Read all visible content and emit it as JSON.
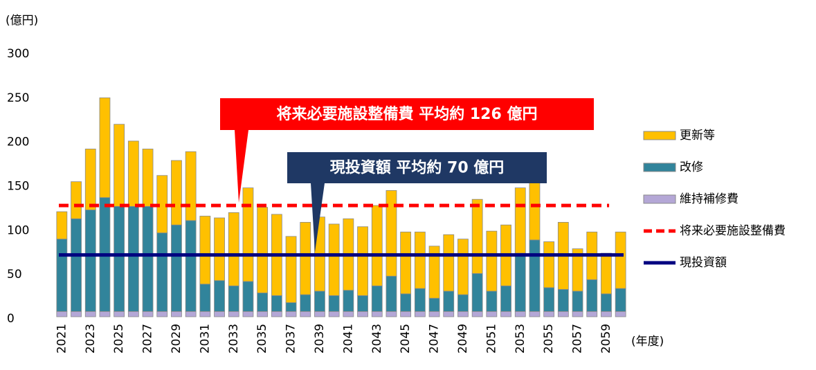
{
  "chart_data": {
    "type": "stacked_bar",
    "y_unit_label": "(億円)",
    "x_unit_label": "(年度)",
    "categories": [
      "2021",
      null,
      "2023",
      null,
      "2025",
      null,
      "2027",
      null,
      "2029",
      null,
      "2031",
      null,
      "2033",
      null,
      "2035",
      null,
      "2037",
      null,
      "2039",
      null,
      "2041",
      null,
      "2043",
      null,
      "2045",
      null,
      "2047",
      null,
      "2049",
      null,
      "2051",
      null,
      "2053",
      null,
      "2055",
      null,
      "2057",
      null,
      "2059",
      null
    ],
    "series": [
      {
        "name": "維持補修費",
        "color": "#b4a7d6",
        "values": [
          6,
          6,
          6,
          6,
          6,
          6,
          6,
          6,
          6,
          6,
          6,
          6,
          6,
          6,
          6,
          6,
          6,
          6,
          6,
          6,
          6,
          6,
          6,
          6,
          6,
          6,
          6,
          6,
          6,
          6,
          6,
          6,
          6,
          6,
          6,
          6,
          6,
          6,
          6,
          6
        ]
      },
      {
        "name": "改修",
        "color": "#31849b",
        "values": [
          82,
          105,
          115,
          129,
          119,
          119,
          119,
          89,
          98,
          103,
          31,
          35,
          29,
          34,
          21,
          18,
          10,
          19,
          23,
          18,
          24,
          18,
          29,
          40,
          20,
          26,
          15,
          23,
          19,
          43,
          23,
          29,
          66,
          81,
          27,
          25,
          23,
          36,
          20,
          26
        ]
      },
      {
        "name": "更新等",
        "color": "#ffc000",
        "values": [
          31,
          42,
          69,
          113,
          93,
          74,
          65,
          65,
          73,
          78,
          77,
          71,
          83,
          106,
          97,
          92,
          75,
          82,
          84,
          81,
          81,
          78,
          91,
          97,
          70,
          64,
          59,
          64,
          63,
          84,
          68,
          69,
          74,
          68,
          52,
          76,
          48,
          54,
          46,
          64
        ]
      }
    ],
    "lines": [
      {
        "name": "将来必要施設整備費",
        "color": "#ff0000",
        "value": 126,
        "dashed": true,
        "annotation": "将来必要施設整備費  平均約 126 億円"
      },
      {
        "name": "現投資額",
        "color": "#000080",
        "value": 70,
        "dashed": false,
        "annotation": "現投資額  平均約 70 億円"
      }
    ],
    "ylim": [
      0,
      300
    ],
    "yticks": [
      0,
      50,
      100,
      150,
      200,
      250,
      300
    ]
  }
}
